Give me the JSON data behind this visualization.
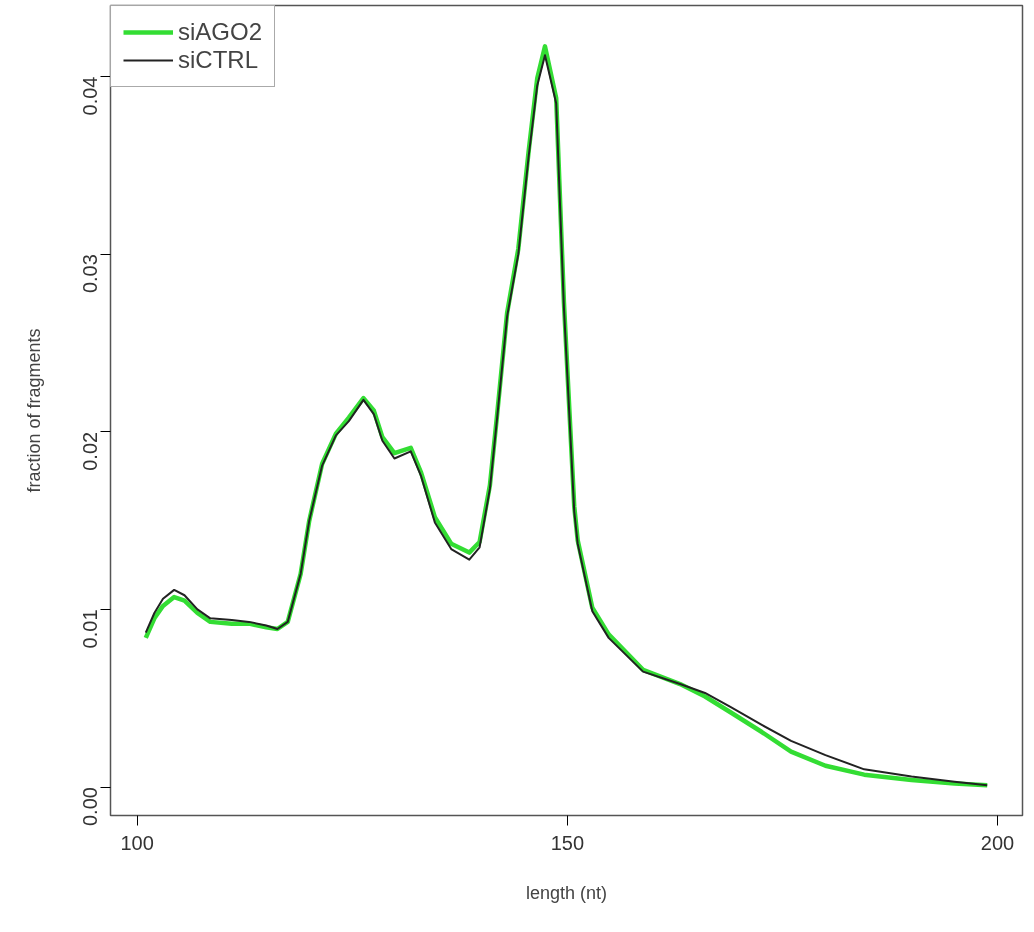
{
  "chart_data": {
    "type": "line",
    "xlabel": "length (nt)",
    "ylabel": "fraction of fragments",
    "xlim": [
      96.9,
      202.9
    ],
    "ylim": [
      -0.0016,
      0.044
    ],
    "xticks": [
      100,
      150,
      200
    ],
    "yticks": [
      {
        "value": 0,
        "label": "0.00"
      },
      {
        "value": 0.01,
        "label": "0.01"
      },
      {
        "value": 0.02,
        "label": "0.02"
      },
      {
        "value": 0.03,
        "label": "0.03"
      },
      {
        "value": 0.04,
        "label": "0.04"
      }
    ],
    "grid": false,
    "legend": "top left",
    "line_style": "solid",
    "marker": "none",
    "series": [
      {
        "name": "siAGO2",
        "color": "#33dd33",
        "x": [
          101,
          102,
          103,
          104.3,
          105.5,
          107,
          108.5,
          111,
          113,
          115,
          116.3,
          117.5,
          119,
          120,
          121.5,
          123.1,
          124.6,
          126.3,
          127.5,
          128.5,
          129.9,
          131.8,
          133,
          134.6,
          136.5,
          138.6,
          139.8,
          141,
          141.8,
          143,
          144.3,
          145.5,
          146.5,
          147.4,
          148.7,
          149.6,
          150.8,
          151.2,
          152.9,
          154.8,
          158.8,
          163.1,
          166,
          169,
          172.6,
          176,
          180,
          184.5,
          190,
          195,
          198.8
        ],
        "values": [
          0.0084,
          0.0095,
          0.0102,
          0.0107,
          0.0105,
          0.0098,
          0.0093,
          0.0092,
          0.0092,
          0.009,
          0.0089,
          0.0093,
          0.012,
          0.015,
          0.0182,
          0.0199,
          0.0208,
          0.0219,
          0.0212,
          0.0197,
          0.0188,
          0.0191,
          0.0177,
          0.0152,
          0.0137,
          0.0132,
          0.0138,
          0.017,
          0.0208,
          0.0267,
          0.0303,
          0.0358,
          0.0399,
          0.0417,
          0.0388,
          0.0273,
          0.0158,
          0.0139,
          0.0101,
          0.0086,
          0.0066,
          0.0058,
          0.0051,
          0.0042,
          0.0031,
          0.002,
          0.0012,
          0.0007,
          0.0004,
          0.0002,
          0.0001
        ]
      },
      {
        "name": "siCTRL",
        "color": "#222222",
        "x": [
          101,
          102,
          103,
          104.3,
          105.5,
          107,
          108.5,
          111,
          113,
          115,
          116.3,
          117.5,
          119,
          120,
          121.5,
          123.1,
          124.6,
          126.3,
          127.5,
          128.5,
          129.9,
          131.8,
          133,
          134.6,
          136.5,
          138.6,
          139.8,
          141,
          141.8,
          143,
          144.3,
          145.5,
          146.5,
          147.4,
          148.7,
          149.6,
          150.8,
          151.2,
          152.9,
          154.8,
          158.8,
          163.1,
          166,
          169,
          172.6,
          176,
          180,
          184.5,
          190,
          195,
          198.8
        ],
        "values": [
          0.0087,
          0.0098,
          0.0106,
          0.0111,
          0.0108,
          0.01,
          0.0095,
          0.0094,
          0.0093,
          0.0091,
          0.0089,
          0.0093,
          0.012,
          0.015,
          0.0181,
          0.0198,
          0.0206,
          0.0218,
          0.021,
          0.0195,
          0.0185,
          0.0189,
          0.0175,
          0.0149,
          0.0134,
          0.0128,
          0.0135,
          0.0168,
          0.0206,
          0.0265,
          0.03,
          0.0355,
          0.0395,
          0.0412,
          0.0385,
          0.027,
          0.0155,
          0.0137,
          0.0099,
          0.0084,
          0.0065,
          0.0058,
          0.0053,
          0.0045,
          0.0035,
          0.0026,
          0.0018,
          0.001,
          0.0006,
          0.0003,
          0.0001
        ]
      }
    ]
  }
}
